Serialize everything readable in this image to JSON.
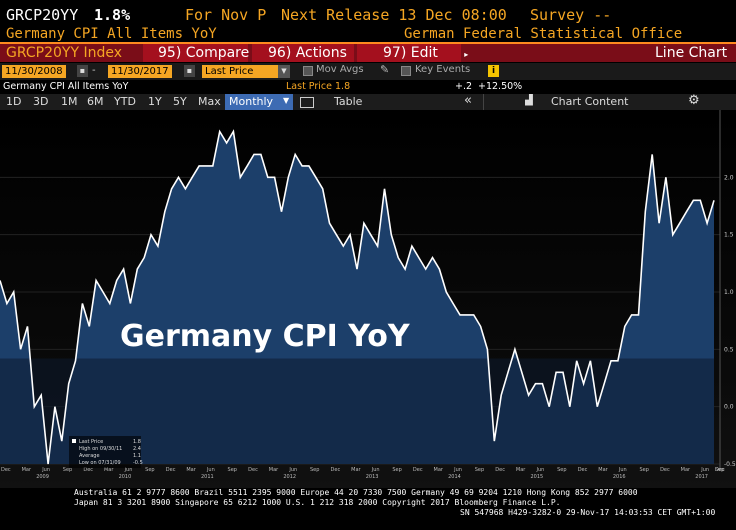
{
  "header": {
    "ticker": "GRCP20YY",
    "value": "1.8%",
    "for_period": "For Nov P",
    "next_release": "Next Release 13 Dec 08:00",
    "survey": "Survey --",
    "description": "Germany CPI All Items YoY",
    "source": "German Federal Statistical Office"
  },
  "toolbar": {
    "security": "GRCP20YY Index",
    "compare": "95) Compare",
    "actions": "96) Actions",
    "edit": "97) Edit",
    "title": "Line Chart"
  },
  "controls": {
    "start_date": "11/30/2008",
    "end_date": "11/30/2017",
    "field": "Last Price",
    "mov_avgs": "Mov Avgs",
    "key_events": "Key Events"
  },
  "info": {
    "security_name": "Germany CPI All Items YoY",
    "last_price": "Last Price 1.8",
    "change": "+.2",
    "pct_change": "+12.50%"
  },
  "periods": [
    "1D",
    "3D",
    "1M",
    "6M",
    "YTD",
    "1Y",
    "5Y",
    "Max"
  ],
  "frequency": "Monthly",
  "table_btn": "Table",
  "chart_content_btn": "Chart Content",
  "overlay_title": "Germany CPI YoY",
  "legend": [
    {
      "label": "Last Price",
      "value": "1.8"
    },
    {
      "label": "High on 09/30/11",
      "value": "2.4"
    },
    {
      "label": "Average",
      "value": "1.1"
    },
    {
      "label": "Low on 07/31/09",
      "value": "-0.5"
    }
  ],
  "footer": {
    "line1": "Australia 61 2 9777 8600 Brazil 5511 2395 9000 Europe 44 20 7330 7500 Germany 49 69 9204 1210 Hong Kong 852 2977 6000",
    "line2": "Japan 81 3 3201 8900      Singapore 65 6212 1000     U.S. 1 212 318 2000           Copyright 2017 Bloomberg Finance L.P.",
    "line3": "SN 547968 H429-3282-0 29-Nov-17 14:03:53 CET  GMT+1:00"
  },
  "colors": {
    "amber": "#f5a623",
    "red_bar": "#7a0d18",
    "red_btn": "#a4101e",
    "chart_fill": "#1c3f6a",
    "chart_line": "#ffffff"
  },
  "chart_data": {
    "type": "area",
    "title": "Germany CPI YoY",
    "x_start": "2008-12",
    "x_end": "2017-11",
    "ylim": [
      -0.5,
      2.5
    ],
    "y_ticks": [
      "2.0",
      "1.5",
      "1.0",
      "0.5",
      "0.0",
      "-0.5"
    ],
    "x_labels": [
      "Dec",
      "Mar",
      "Jun",
      "Sep",
      "Dec",
      "Mar",
      "Jun",
      "Sep",
      "Dec",
      "Mar",
      "Jun",
      "Sep",
      "Dec",
      "Mar",
      "Jun",
      "Sep",
      "Dec",
      "Mar",
      "Jun",
      "Sep",
      "Dec",
      "Mar",
      "Jun",
      "Sep",
      "Dec",
      "Mar",
      "Jun",
      "Sep",
      "Dec",
      "Mar",
      "Jun",
      "Sep",
      "Dec",
      "Mar",
      "Jun",
      "Sep",
      "Dec"
    ],
    "year_labels": [
      "2009",
      "2010",
      "2011",
      "2012",
      "2013",
      "2014",
      "2015",
      "2016",
      "2017"
    ],
    "series": [
      {
        "values": [
          1.1,
          0.9,
          1.0,
          0.5,
          0.7,
          0.0,
          0.1,
          -0.5,
          0.0,
          -0.3,
          0.2,
          0.4,
          0.9,
          0.7,
          1.1,
          1.0,
          0.9,
          1.1,
          1.2,
          0.9,
          1.2,
          1.3,
          1.5,
          1.4,
          1.7,
          1.9,
          2.0,
          1.9,
          2.0,
          2.1,
          2.1,
          2.1,
          2.4,
          2.3,
          2.4,
          2.0,
          2.1,
          2.2,
          2.2,
          2.0,
          2.0,
          1.7,
          2.0,
          2.2,
          2.1,
          2.1,
          2.0,
          1.9,
          1.6,
          1.5,
          1.4,
          1.5,
          1.2,
          1.6,
          1.5,
          1.4,
          1.9,
          1.5,
          1.3,
          1.2,
          1.4,
          1.3,
          1.2,
          1.3,
          1.2,
          1.0,
          0.9,
          0.8,
          0.8,
          0.8,
          0.7,
          0.5,
          -0.3,
          0.1,
          0.3,
          0.5,
          0.3,
          0.1,
          0.2,
          0.2,
          0.0,
          0.3,
          0.3,
          0.0,
          0.4,
          0.2,
          0.4,
          0.0,
          0.2,
          0.4,
          0.4,
          0.7,
          0.8,
          0.8,
          1.7,
          2.2,
          1.6,
          2.0,
          1.5,
          1.6,
          1.7,
          1.8,
          1.8,
          1.6,
          1.8
        ]
      }
    ]
  }
}
